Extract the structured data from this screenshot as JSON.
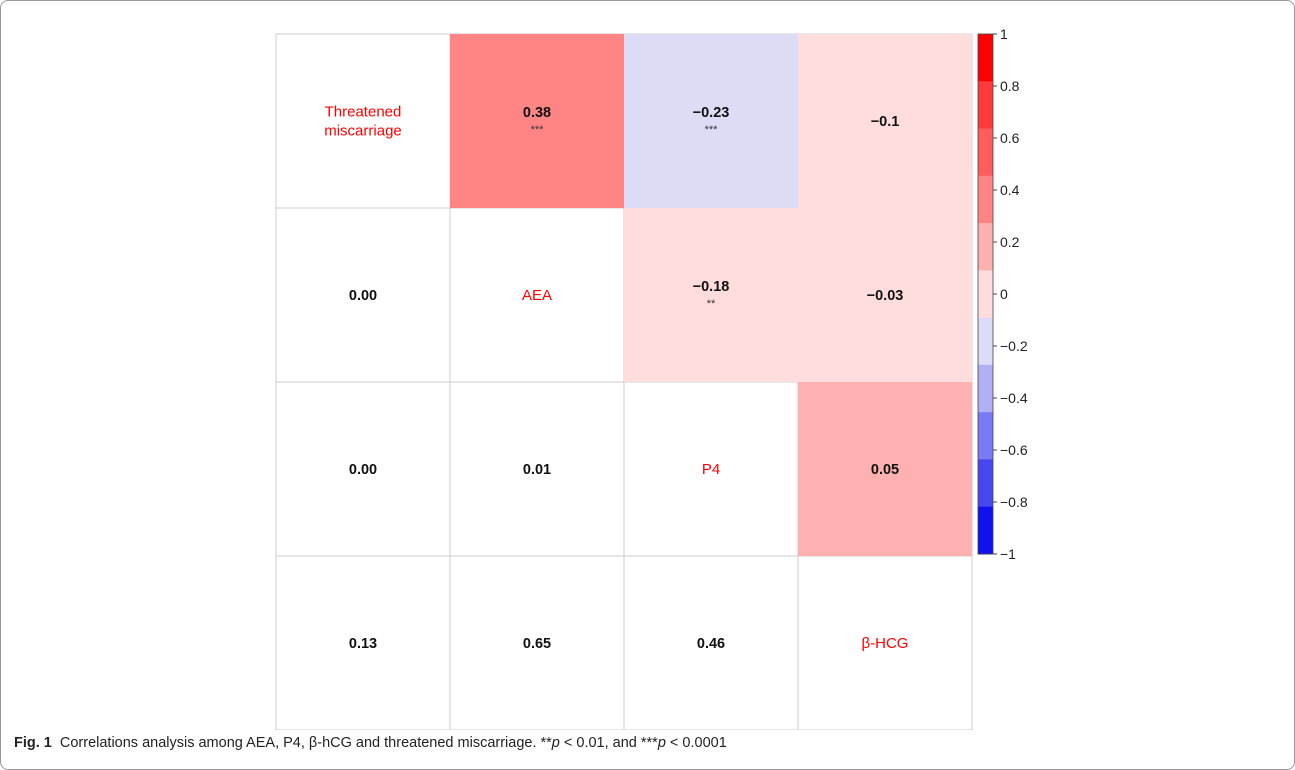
{
  "chart_data": {
    "type": "heatmap",
    "variables": [
      "Threatened\nmiscarriage",
      "AEA",
      "P4",
      "β-HCG"
    ],
    "upper_correlations": [
      {
        "row": 0,
        "col": 1,
        "value": 0.38,
        "label": "0.38",
        "sig": "***"
      },
      {
        "row": 0,
        "col": 2,
        "value": -0.23,
        "label": "−0.23",
        "sig": "***"
      },
      {
        "row": 0,
        "col": 3,
        "value": -0.1,
        "label": "−0.1",
        "sig": ""
      },
      {
        "row": 1,
        "col": 2,
        "value": -0.18,
        "label": "−0.18",
        "sig": "**"
      },
      {
        "row": 1,
        "col": 3,
        "value": -0.03,
        "label": "−0.03",
        "sig": ""
      },
      {
        "row": 2,
        "col": 3,
        "value": 0.05,
        "label": "0.05",
        "sig": ""
      }
    ],
    "lower_pvalues": [
      {
        "row": 1,
        "col": 0,
        "label": "0.00"
      },
      {
        "row": 2,
        "col": 0,
        "label": "0.00"
      },
      {
        "row": 2,
        "col": 1,
        "label": "0.01"
      },
      {
        "row": 3,
        "col": 0,
        "label": "0.13"
      },
      {
        "row": 3,
        "col": 1,
        "label": "0.65"
      },
      {
        "row": 3,
        "col": 2,
        "label": "0.46"
      }
    ],
    "colorbar": {
      "range": [
        -1,
        1
      ],
      "step": 0.2,
      "tick_labels": [
        "1",
        "0.8",
        "0.6",
        "0.4",
        "0.2",
        "0",
        "−0.2",
        "−0.4",
        "−0.6",
        "−0.8",
        "−1"
      ],
      "colors_top_to_bottom": [
        "#ff0000",
        "#ff3a3a",
        "#ff5c5c",
        "#ff8585",
        "#ffb0b0",
        "#ffdddd",
        "#dcdcf7",
        "#b0b0f7",
        "#7a7af5",
        "#4747f0",
        "#1010f0"
      ]
    },
    "label_color": "#ff0000"
  },
  "caption": {
    "fig_label": "Fig. 1",
    "text_a": "Correlations analysis among AEA, P4, β-hCG and threatened miscarriage. **",
    "p1": "p",
    "text_b": " < 0.01, and ***",
    "p2": "p",
    "text_c": " < 0.0001"
  }
}
